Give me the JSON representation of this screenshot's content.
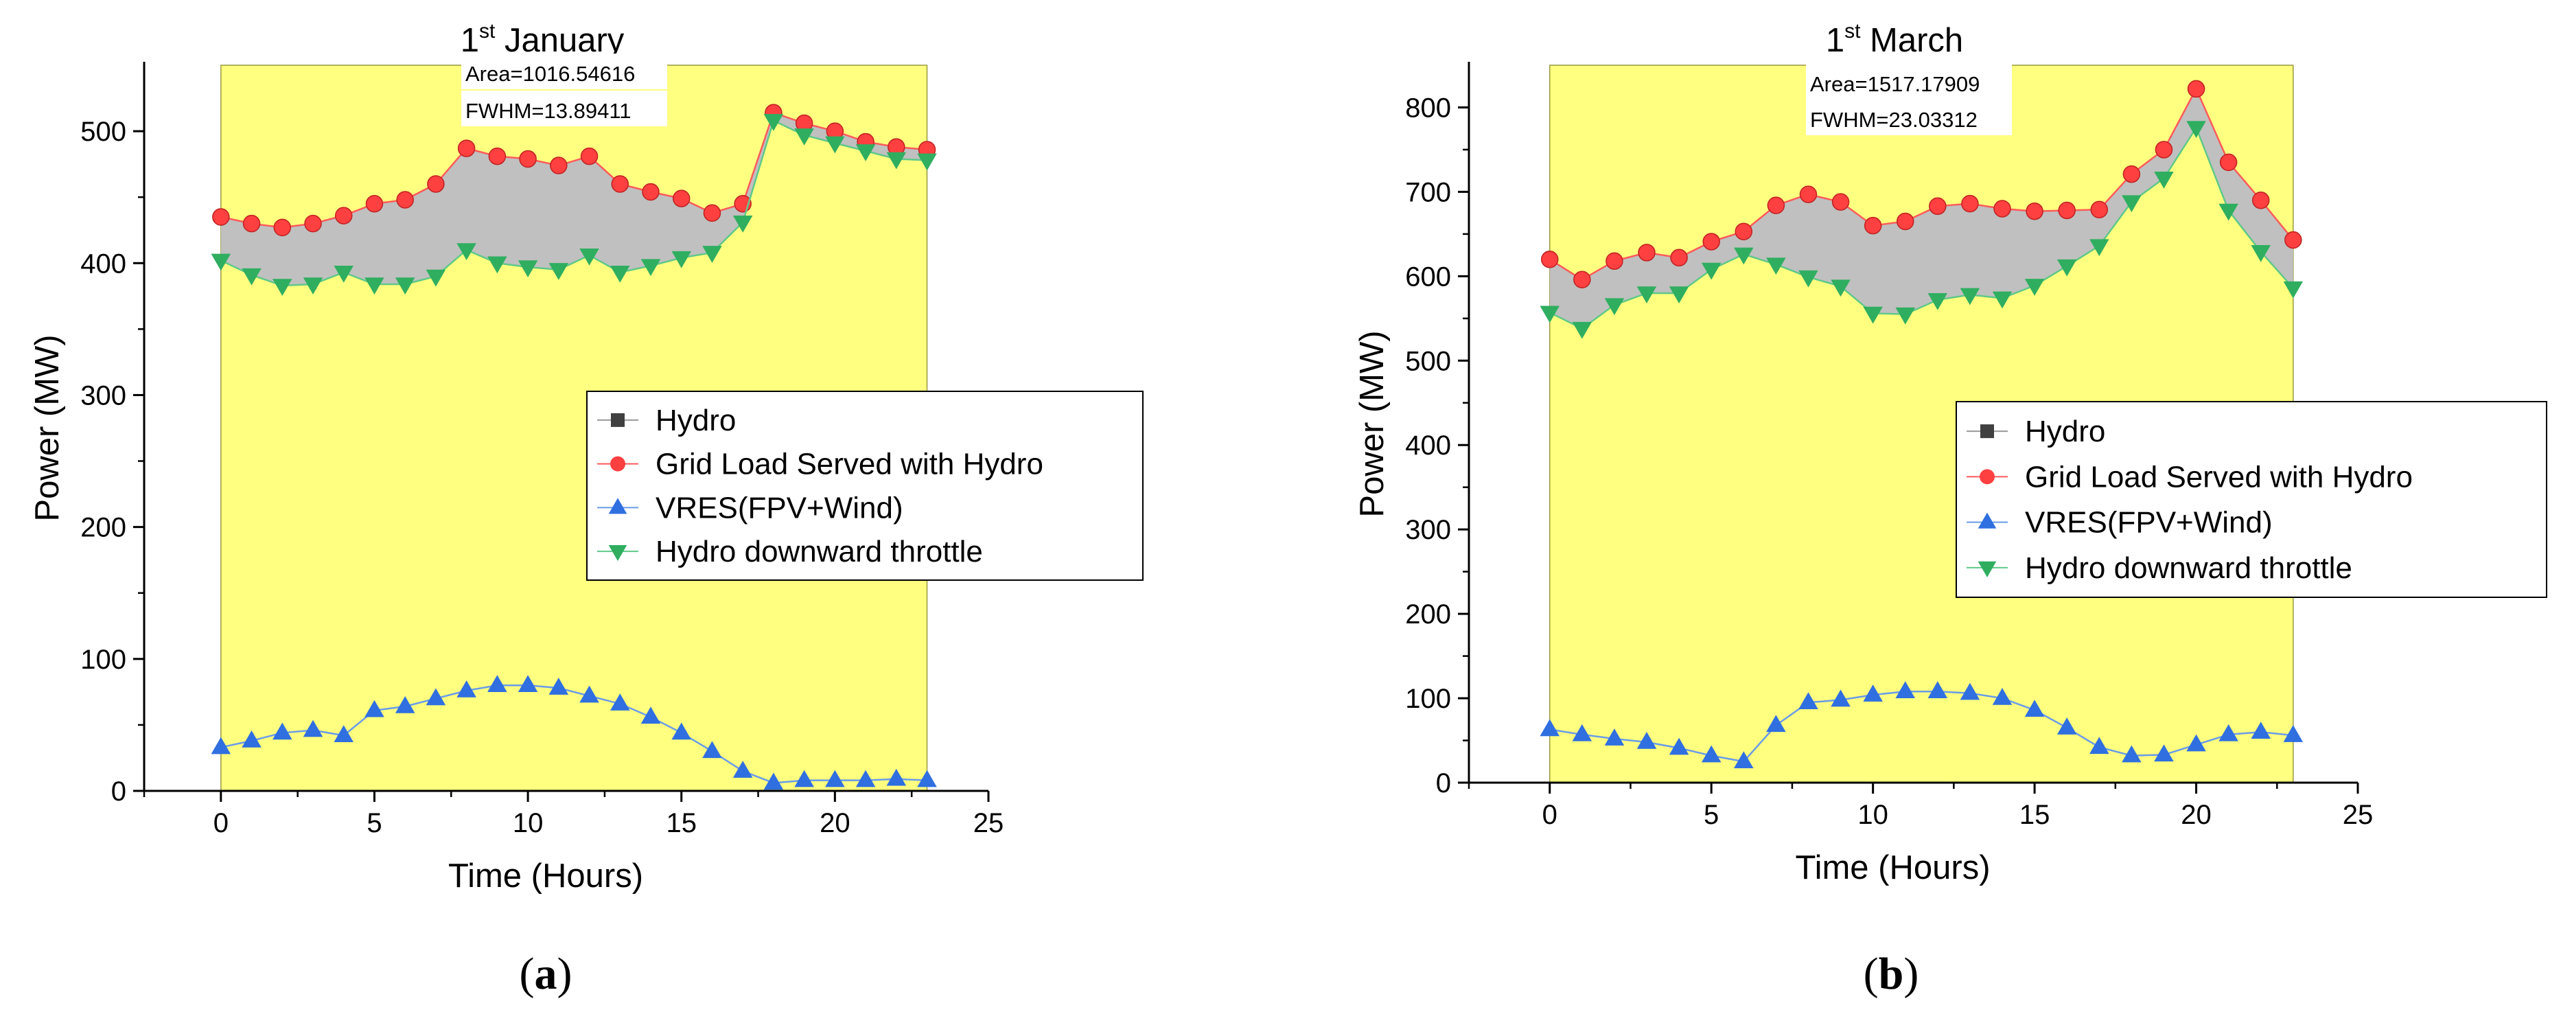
{
  "colors": {
    "highlight_fill": "#ffff80",
    "band_fill": "#c0c0c0",
    "grid_load": "#ff4040",
    "grid_load_line": "#ff5a5a",
    "vres": "#2f6fe0",
    "vres_line": "#6a9be8",
    "throttle": "#2fae60",
    "throttle_line": "#5fc88a",
    "hydro": "#404040"
  },
  "chart_data": [
    {
      "type": "line",
      "panel_label_parts": [
        "(",
        "a",
        ")"
      ],
      "title_prefix": "1",
      "title_sup": "st",
      "title_suffix": " January",
      "xlabel": "Time (Hours)",
      "ylabel": "Power (MW)",
      "xlim": [
        -2.5,
        25
      ],
      "ylim": [
        0,
        550
      ],
      "xticks": [
        0,
        5,
        10,
        15,
        20,
        25
      ],
      "yticks": [
        0,
        100,
        200,
        300,
        400,
        500
      ],
      "highlight_range": [
        0,
        23
      ],
      "annotations": [
        "Area=1016.54616",
        "FWHM=13.89411"
      ],
      "legend": [
        "Hydro",
        "Grid Load Served with Hydro",
        "VRES(FPV+Wind)",
        "Hydro downward throttle"
      ],
      "x": [
        0,
        1,
        2,
        3,
        4,
        5,
        6,
        7,
        8,
        9,
        10,
        11,
        12,
        13,
        14,
        15,
        16,
        17,
        18,
        19,
        20,
        21,
        22,
        23
      ],
      "series": [
        {
          "name": "Grid Load Served with Hydro",
          "marker": "circle",
          "values": [
            435,
            430,
            427,
            430,
            436,
            445,
            448,
            460,
            487,
            481,
            479,
            474,
            481,
            460,
            454,
            449,
            438,
            445,
            514,
            506,
            500,
            492,
            488,
            486
          ]
        },
        {
          "name": "Hydro downward throttle",
          "marker": "triangle-down",
          "values": [
            402,
            391,
            383,
            384,
            393,
            384,
            384,
            390,
            410,
            400,
            397,
            395,
            406,
            393,
            398,
            404,
            408,
            431,
            508,
            497,
            491,
            485,
            479,
            478
          ]
        },
        {
          "name": "VRES(FPV+Wind)",
          "marker": "triangle-up",
          "values": [
            33,
            38,
            44,
            46,
            42,
            61,
            64,
            70,
            76,
            80,
            80,
            78,
            72,
            66,
            56,
            44,
            30,
            15,
            6,
            8,
            8,
            8,
            9,
            8
          ]
        }
      ]
    },
    {
      "type": "line",
      "panel_label_parts": [
        "(",
        "b",
        ")"
      ],
      "title_prefix": "1",
      "title_sup": "st",
      "title_suffix": " March",
      "xlabel": "Time (Hours)",
      "ylabel": "Power (MW)",
      "xlim": [
        -2.5,
        25
      ],
      "ylim": [
        0,
        850
      ],
      "xticks": [
        0,
        5,
        10,
        15,
        20,
        25
      ],
      "yticks": [
        0,
        100,
        200,
        300,
        400,
        500,
        600,
        700,
        800
      ],
      "highlight_range": [
        0,
        23
      ],
      "annotations": [
        "Area=1517.17909",
        "FWHM=23.03312"
      ],
      "legend": [
        "Hydro",
        "Grid Load Served with Hydro",
        "VRES(FPV+Wind)",
        "Hydro downward throttle"
      ],
      "x": [
        0,
        1,
        2,
        3,
        4,
        5,
        6,
        7,
        8,
        9,
        10,
        11,
        12,
        13,
        14,
        15,
        16,
        17,
        18,
        19,
        20,
        21,
        22,
        23
      ],
      "series": [
        {
          "name": "Grid Load Served with Hydro",
          "marker": "circle",
          "values": [
            620,
            596,
            618,
            628,
            622,
            641,
            653,
            684,
            697,
            688,
            660,
            665,
            683,
            686,
            680,
            677,
            678,
            679,
            721,
            750,
            822,
            735,
            690,
            643
          ]
        },
        {
          "name": "Hydro downward throttle",
          "marker": "triangle-down",
          "values": [
            557,
            538,
            566,
            580,
            580,
            608,
            626,
            614,
            599,
            588,
            556,
            555,
            572,
            578,
            574,
            589,
            612,
            636,
            688,
            716,
            776,
            678,
            629,
            586
          ]
        },
        {
          "name": "VRES(FPV+Wind)",
          "marker": "triangle-up",
          "values": [
            63,
            57,
            52,
            48,
            41,
            32,
            25,
            68,
            95,
            98,
            104,
            108,
            108,
            106,
            100,
            86,
            65,
            42,
            32,
            33,
            45,
            57,
            60,
            56
          ]
        }
      ]
    }
  ]
}
